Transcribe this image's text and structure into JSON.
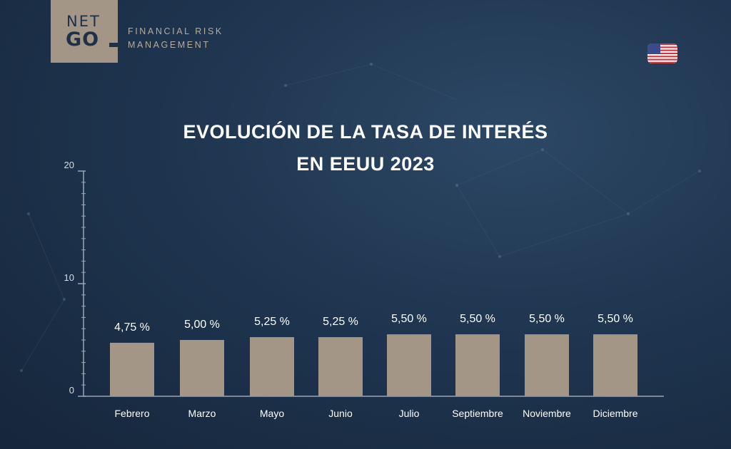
{
  "brand": {
    "logo_top": "NET",
    "logo_bottom": "GO",
    "tagline_line1": "FINANCIAL RISK",
    "tagline_line2": "MANAGEMENT"
  },
  "flag_icon": "us-flag-icon",
  "colors": {
    "bar": "#a39686",
    "axis": "#9aa5b3",
    "background": "#1f3550",
    "accent": "#a39686"
  },
  "chart_data": {
    "type": "bar",
    "title_line1": "EVOLUCIÓN DE LA TASA DE INTERÉS",
    "title_line2": "EN EEUU 2023",
    "categories": [
      "Febrero",
      "Marzo",
      "Mayo",
      "Junio",
      "Julio",
      "Septiembre",
      "Noviembre",
      "Diciembre"
    ],
    "values": [
      4.75,
      5.0,
      5.25,
      5.25,
      5.5,
      5.5,
      5.5,
      5.5
    ],
    "data_labels": [
      "4,75 %",
      "5,00 %",
      "5,25 %",
      "5,25 %",
      "5,50 %",
      "5,50 %",
      "5,50 %",
      "5,50 %"
    ],
    "ylim": [
      0,
      20
    ],
    "yticks": [
      0,
      10,
      20
    ],
    "xlabel": "",
    "ylabel": "",
    "grid": false
  }
}
